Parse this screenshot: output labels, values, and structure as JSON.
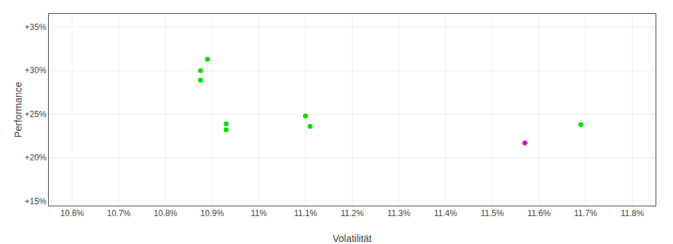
{
  "chart_data": {
    "type": "scatter",
    "xlabel": "Volatilität",
    "ylabel": "Performance",
    "xlim": [
      10.55,
      11.85
    ],
    "ylim": [
      14.5,
      36.5
    ],
    "xticks": [
      {
        "value": 10.6,
        "label": "10.6%"
      },
      {
        "value": 10.7,
        "label": "10.7%"
      },
      {
        "value": 10.8,
        "label": "10.8%"
      },
      {
        "value": 10.9,
        "label": "10.9%"
      },
      {
        "value": 11.0,
        "label": "11%"
      },
      {
        "value": 11.1,
        "label": "11.1%"
      },
      {
        "value": 11.2,
        "label": "11.2%"
      },
      {
        "value": 11.3,
        "label": "11.3%"
      },
      {
        "value": 11.4,
        "label": "11.4%"
      },
      {
        "value": 11.5,
        "label": "11.5%"
      },
      {
        "value": 11.6,
        "label": "11.6%"
      },
      {
        "value": 11.7,
        "label": "11.7%"
      },
      {
        "value": 11.8,
        "label": "11.8%"
      }
    ],
    "yticks": [
      {
        "value": 15,
        "label": "+15%"
      },
      {
        "value": 20,
        "label": "+20%"
      },
      {
        "value": 25,
        "label": "+25%"
      },
      {
        "value": 30,
        "label": "+30%"
      },
      {
        "value": 35,
        "label": "+35%"
      }
    ],
    "grid": true,
    "series": [
      {
        "color": "#00dd00",
        "x": [
          10.89,
          10.875,
          10.875,
          10.93,
          10.93,
          11.1,
          11.11,
          11.69
        ],
        "values": [
          31.3,
          30.0,
          28.9,
          23.9,
          23.2,
          24.8,
          23.6,
          23.8
        ]
      },
      {
        "color": "#dd00dd",
        "x": [
          11.57
        ],
        "values": [
          21.7
        ]
      }
    ]
  }
}
